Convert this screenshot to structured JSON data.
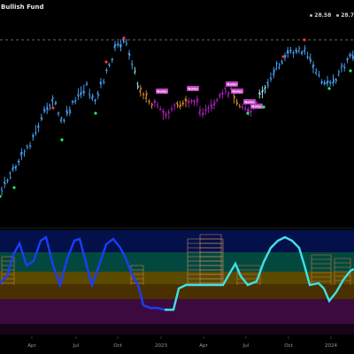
{
  "header": {
    "title": "Bullish Fund",
    "ohlc": [
      "28.58",
      "28.7"
    ]
  },
  "signals": {
    "neutral_label": "NoGo"
  },
  "xaxis": {
    "labels": [
      "Apr",
      "Jul",
      "Oct",
      "2023",
      "Apr",
      "Jul",
      "Oct",
      "2024"
    ]
  },
  "colors": {
    "background": "#000000",
    "bull_candle": "#4aa8ff",
    "bull_bright": "#9ff0ff",
    "bear_candle": "#b020c0",
    "neutral_candle": "#e89030",
    "nogo_badge": "#c040c0",
    "go_dot": "#22ee66",
    "nogo_dot": "#ff3040",
    "oscillator_blue": "#1a3dff",
    "oscillator_cyan": "#40e0e8"
  }
}
